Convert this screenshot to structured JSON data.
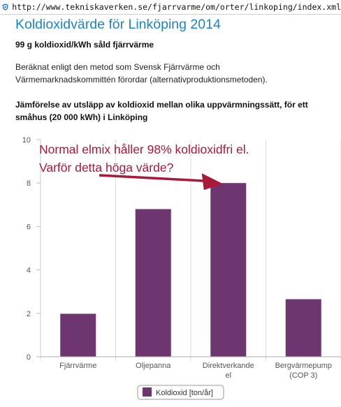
{
  "browser": {
    "url": "http://www.tekniskaverken.se/fjarrvarme/om/orter/linkoping/index.xml"
  },
  "page": {
    "title": "Koldioxidvärde för Linköping 2014",
    "subtitle": "99 g koldioxid/kWh såld fjärrvärme",
    "description_lines": [
      "Beräknat enligt den metod som Svensk Fjärrvärme och",
      "Värmemarknadskommittén förordar (alternativproduktionsmetoden)."
    ],
    "comparison_lines": [
      "Jämförelse av utsläpp av koldioxid mellan olika uppvärmningssätt, för ett",
      "småhus (20 000 kWh) i Linköping"
    ]
  },
  "annotation": {
    "lines": [
      "Normal elmix håller 98% koldioxidfri el.",
      "Varför detta höga värde?"
    ],
    "color": "#a8193a"
  },
  "colors": {
    "title": "#1a85c8",
    "bar": "#6e3670",
    "annotation": "#a8193a"
  },
  "chart_data": {
    "type": "bar",
    "categories": [
      [
        "Fjärrvärme"
      ],
      [
        "Oljepanna"
      ],
      [
        "Direktverkande",
        "el"
      ],
      [
        "Bergvärmepump",
        "(COP 3)"
      ]
    ],
    "series": [
      {
        "name": "Koldioxid [ton/år]",
        "values": [
          1.98,
          6.8,
          8.0,
          2.65
        ]
      }
    ],
    "ylim": [
      0,
      10
    ],
    "yticks": [
      0,
      2,
      4,
      6,
      8,
      10
    ],
    "grid": "vertical separators between categories",
    "legend": "bottom-center",
    "title": "",
    "xlabel": "",
    "ylabel": ""
  }
}
